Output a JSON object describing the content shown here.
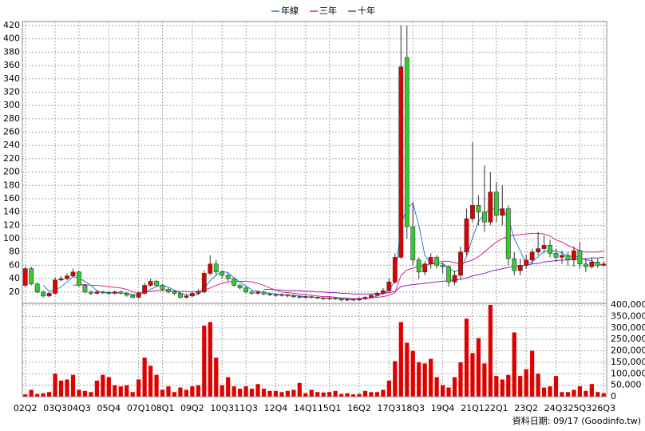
{
  "chart_data": {
    "type": "candlestick",
    "categories": [
      "02Q2",
      null,
      null,
      null,
      null,
      "03Q3",
      null,
      null,
      null,
      "04Q3",
      null,
      null,
      null,
      null,
      "05Q4",
      null,
      null,
      null,
      null,
      "07Q1",
      null,
      null,
      null,
      "08Q1",
      null,
      null,
      null,
      null,
      "09Q2",
      null,
      null,
      null,
      null,
      "10Q3",
      null,
      null,
      null,
      "11Q3",
      null,
      null,
      null,
      null,
      "12Q4",
      null,
      null,
      null,
      null,
      "14Q1",
      null,
      null,
      null,
      "15Q1",
      null,
      null,
      null,
      null,
      "16Q2",
      null,
      null,
      null,
      null,
      "17Q3",
      null,
      null,
      null,
      "18Q3",
      null,
      null,
      null,
      null,
      "19Q4",
      null,
      null,
      null,
      null,
      "21Q1",
      null,
      null,
      null,
      "22Q1",
      null,
      null,
      null,
      null,
      "23Q2",
      null,
      null,
      null,
      null,
      "24Q3",
      null,
      null,
      null,
      "25Q3",
      null,
      null,
      null,
      "26Q3"
    ],
    "open": [
      30,
      55,
      32,
      20,
      14,
      18,
      38,
      40,
      44,
      50,
      30,
      20,
      18,
      20,
      19,
      18,
      20,
      18,
      15,
      12,
      18,
      30,
      36,
      30,
      24,
      20,
      18,
      12,
      14,
      18,
      20,
      48,
      62,
      50,
      45,
      40,
      30,
      26,
      20,
      18,
      20,
      17,
      16,
      15,
      16,
      14,
      13,
      12,
      13,
      12,
      11,
      10,
      11,
      10,
      8,
      9,
      8,
      10,
      12,
      15,
      18,
      22,
      35,
      72,
      372,
      118,
      68,
      50,
      62,
      72,
      60,
      58,
      35,
      45,
      80,
      130,
      150,
      140,
      125,
      170,
      135,
      145,
      70,
      52,
      60,
      68,
      80,
      85,
      90,
      78,
      72,
      75,
      68,
      82,
      62,
      58,
      65,
      60
    ],
    "high": [
      58,
      58,
      34,
      22,
      20,
      42,
      44,
      48,
      55,
      52,
      32,
      22,
      23,
      22,
      21,
      22,
      22,
      20,
      17,
      20,
      34,
      40,
      38,
      32,
      26,
      22,
      20,
      16,
      20,
      24,
      52,
      75,
      68,
      52,
      48,
      42,
      32,
      28,
      22,
      22,
      22,
      19,
      18,
      18,
      17,
      16,
      15,
      15,
      14,
      13,
      12,
      13,
      12,
      11,
      11,
      10,
      12,
      14,
      17,
      21,
      26,
      40,
      78,
      420,
      420,
      155,
      72,
      66,
      78,
      75,
      64,
      60,
      52,
      88,
      145,
      245,
      165,
      210,
      200,
      185,
      180,
      150,
      80,
      70,
      76,
      85,
      110,
      105,
      98,
      85,
      82,
      80,
      88,
      95,
      70,
      72,
      70,
      66
    ],
    "low": [
      28,
      30,
      18,
      12,
      12,
      16,
      36,
      38,
      42,
      28,
      18,
      15,
      16,
      17,
      15,
      16,
      16,
      13,
      10,
      10,
      16,
      28,
      28,
      22,
      18,
      15,
      10,
      10,
      12,
      16,
      18,
      45,
      46,
      40,
      36,
      28,
      24,
      18,
      16,
      16,
      15,
      14,
      13,
      13,
      12,
      11,
      10,
      10,
      10,
      9,
      8,
      8,
      8,
      6,
      6,
      6,
      6,
      8,
      10,
      13,
      16,
      20,
      32,
      70,
      100,
      60,
      40,
      45,
      55,
      55,
      48,
      28,
      30,
      40,
      75,
      125,
      120,
      110,
      120,
      125,
      120,
      60,
      45,
      45,
      55,
      62,
      75,
      78,
      72,
      65,
      62,
      60,
      58,
      55,
      50,
      55,
      56,
      58
    ],
    "close": [
      55,
      32,
      20,
      14,
      18,
      38,
      40,
      44,
      50,
      30,
      20,
      18,
      20,
      19,
      18,
      20,
      18,
      15,
      12,
      18,
      30,
      36,
      30,
      24,
      20,
      18,
      12,
      14,
      18,
      20,
      48,
      62,
      50,
      45,
      40,
      30,
      26,
      20,
      18,
      20,
      17,
      16,
      15,
      16,
      14,
      13,
      12,
      13,
      12,
      11,
      10,
      11,
      10,
      8,
      9,
      8,
      10,
      12,
      15,
      18,
      22,
      35,
      72,
      358,
      118,
      68,
      50,
      62,
      72,
      60,
      58,
      35,
      45,
      80,
      130,
      150,
      140,
      125,
      170,
      135,
      145,
      70,
      52,
      60,
      68,
      80,
      85,
      90,
      78,
      72,
      75,
      68,
      82,
      62,
      58,
      65,
      60,
      62
    ],
    "up_color": "#e00000",
    "down_color": "#33cc33",
    "series": [
      {
        "name": "年線",
        "color": "#2a7fd8",
        "values": [
          null,
          null,
          null,
          30,
          21,
          22,
          28,
          35,
          43,
          41,
          36,
          30,
          22,
          19,
          19,
          19,
          19,
          18,
          16,
          16,
          19,
          24,
          28,
          30,
          27,
          23,
          18,
          16,
          15,
          16,
          25,
          37,
          45,
          51,
          49,
          41,
          35,
          29,
          23,
          21,
          19,
          18,
          17,
          16,
          15,
          15,
          14,
          13,
          12,
          12,
          11,
          11,
          10,
          10,
          9,
          9,
          9,
          10,
          11,
          14,
          17,
          22,
          37,
          121,
          146,
          153,
          120,
          75,
          63,
          61,
          63,
          56,
          50,
          55,
          73,
          101,
          126,
          136,
          146,
          143,
          144,
          130,
          100,
          82,
          62,
          65,
          73,
          81,
          83,
          81,
          79,
          73,
          74,
          72,
          68,
          67,
          61,
          61
        ]
      },
      {
        "name": "三年",
        "color": "#e0208c",
        "values": [
          null,
          null,
          null,
          null,
          null,
          null,
          null,
          null,
          30,
          31,
          31,
          30,
          30,
          29,
          28,
          27,
          26,
          24,
          20,
          19,
          20,
          21,
          22,
          22,
          22,
          21,
          21,
          21,
          20,
          21,
          23,
          26,
          30,
          33,
          35,
          36,
          36,
          36,
          35,
          33,
          30,
          26,
          23,
          20,
          19,
          18,
          17,
          16,
          15,
          14,
          13,
          13,
          12,
          11,
          11,
          10,
          10,
          10,
          11,
          12,
          13,
          15,
          19,
          45,
          53,
          56,
          58,
          60,
          62,
          64,
          66,
          66,
          64,
          62,
          65,
          68,
          73,
          80,
          88,
          95,
          100,
          104,
          105,
          106,
          107,
          108,
          108,
          107,
          104,
          98,
          95,
          90,
          86,
          82,
          80,
          80,
          80,
          82
        ]
      },
      {
        "name": "十年",
        "color": "#8a1fc8",
        "values": [
          null,
          null,
          null,
          null,
          null,
          null,
          null,
          null,
          null,
          null,
          null,
          null,
          null,
          null,
          null,
          null,
          null,
          null,
          null,
          null,
          null,
          null,
          null,
          null,
          null,
          null,
          null,
          null,
          null,
          null,
          null,
          null,
          null,
          null,
          null,
          null,
          null,
          null,
          null,
          null,
          24,
          24,
          23,
          23,
          22,
          22,
          22,
          21,
          21,
          20,
          20,
          19,
          19,
          18,
          18,
          17,
          17,
          17,
          17,
          18,
          18,
          19,
          21,
          28,
          30,
          31,
          32,
          33,
          34,
          35,
          36,
          37,
          38,
          39,
          41,
          44,
          46,
          48,
          51,
          53,
          55,
          57,
          58,
          59,
          60,
          62,
          63,
          65,
          66,
          67,
          68,
          68,
          69,
          70,
          70,
          71,
          71,
          72
        ]
      }
    ],
    "ylim": [
      3,
      426
    ],
    "yticks": [
      20,
      40,
      60,
      80,
      100,
      120,
      140,
      160,
      180,
      200,
      220,
      240,
      260,
      280,
      300,
      320,
      340,
      360,
      380,
      400,
      420
    ],
    "volume": {
      "color": "#e00000",
      "values": [
        10000,
        30000,
        12000,
        15000,
        20000,
        100000,
        70000,
        75000,
        95000,
        30000,
        25000,
        20000,
        70000,
        95000,
        85000,
        50000,
        45000,
        50000,
        20000,
        75000,
        170000,
        135000,
        95000,
        30000,
        45000,
        20000,
        40000,
        30000,
        45000,
        50000,
        310000,
        325000,
        170000,
        50000,
        85000,
        45000,
        35000,
        45000,
        35000,
        55000,
        35000,
        25000,
        25000,
        20000,
        25000,
        30000,
        60000,
        15000,
        30000,
        20000,
        18000,
        20000,
        25000,
        12000,
        15000,
        10000,
        12000,
        25000,
        20000,
        20000,
        30000,
        70000,
        155000,
        325000,
        235000,
        200000,
        150000,
        145000,
        165000,
        85000,
        50000,
        40000,
        85000,
        150000,
        340000,
        190000,
        255000,
        145000,
        400000,
        90000,
        75000,
        95000,
        280000,
        90000,
        120000,
        200000,
        100000,
        40000,
        45000,
        90000,
        20000,
        20000,
        30000,
        45000,
        25000,
        55000,
        20000,
        15000
      ],
      "y2lim": [
        0,
        407000
      ],
      "y2ticks": [
        0,
        {
          "value": 50000,
          "label": "50,000"
        },
        {
          "value": 100000,
          "label": "100,000"
        },
        {
          "value": 150000,
          "label": "150,000"
        },
        {
          "value": 200000,
          "label": "200,000"
        },
        {
          "value": 250000,
          "label": "250,000"
        },
        {
          "value": 300000,
          "label": "300,000"
        },
        {
          "value": 350000,
          "label": "350,000"
        },
        {
          "value": 400000,
          "label": "400,000"
        }
      ]
    },
    "grid": true,
    "footnote": "資料日期: 09/17  (Goodinfo.tw)"
  }
}
